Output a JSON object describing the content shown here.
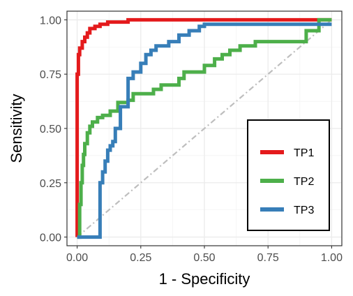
{
  "chart_data": {
    "type": "line",
    "title": "",
    "xlabel": "1 - Specificity",
    "ylabel": "Sensitivity",
    "xlim": [
      -0.04,
      1.04
    ],
    "ylim": [
      -0.04,
      1.04
    ],
    "x_ticks": [
      "0.00",
      "0.25",
      "0.50",
      "0.75",
      "1.00"
    ],
    "y_ticks": [
      "0.00",
      "0.25",
      "0.50",
      "0.75",
      "1.00"
    ],
    "grid": true,
    "legend_position": "bottom-right",
    "reference_line": {
      "x": [
        0,
        1
      ],
      "y": [
        0,
        1
      ],
      "color": "#bebebe",
      "style": "dash-dot"
    },
    "series": [
      {
        "name": "TP1",
        "color": "#e41a1c",
        "x": [
          0,
          0,
          0.005,
          0.005,
          0.01,
          0.01,
          0.02,
          0.02,
          0.03,
          0.03,
          0.04,
          0.04,
          0.05,
          0.05,
          0.07,
          0.07,
          0.09,
          0.09,
          0.12,
          0.12,
          0.2,
          0.2,
          0.35,
          0.35,
          0.58,
          0.58,
          1
        ],
        "y": [
          0,
          0.75,
          0.75,
          0.84,
          0.84,
          0.87,
          0.87,
          0.9,
          0.9,
          0.92,
          0.92,
          0.94,
          0.94,
          0.96,
          0.96,
          0.97,
          0.97,
          0.98,
          0.98,
          0.99,
          0.99,
          1.0,
          1.0,
          1.0,
          1.0,
          1.0,
          1.0
        ]
      },
      {
        "name": "TP2",
        "color": "#4daf4a",
        "x": [
          0,
          0.01,
          0.01,
          0.015,
          0.015,
          0.02,
          0.02,
          0.025,
          0.025,
          0.03,
          0.03,
          0.04,
          0.04,
          0.05,
          0.05,
          0.06,
          0.06,
          0.08,
          0.08,
          0.1,
          0.1,
          0.13,
          0.13,
          0.16,
          0.16,
          0.2,
          0.2,
          0.22,
          0.22,
          0.3,
          0.3,
          0.33,
          0.33,
          0.4,
          0.4,
          0.42,
          0.42,
          0.5,
          0.5,
          0.54,
          0.54,
          0.57,
          0.57,
          0.6,
          0.6,
          0.64,
          0.64,
          0.7,
          0.7,
          0.9,
          0.9,
          0.95,
          0.95,
          1
        ],
        "y": [
          0,
          0,
          0.15,
          0.15,
          0.25,
          0.25,
          0.33,
          0.33,
          0.38,
          0.38,
          0.43,
          0.43,
          0.48,
          0.48,
          0.51,
          0.51,
          0.53,
          0.53,
          0.55,
          0.55,
          0.56,
          0.56,
          0.58,
          0.58,
          0.62,
          0.62,
          0.63,
          0.63,
          0.66,
          0.66,
          0.68,
          0.68,
          0.7,
          0.7,
          0.73,
          0.73,
          0.76,
          0.76,
          0.79,
          0.79,
          0.82,
          0.82,
          0.84,
          0.84,
          0.86,
          0.86,
          0.88,
          0.88,
          0.9,
          0.9,
          0.95,
          0.95,
          1.0,
          1.0
        ]
      },
      {
        "name": "TP3",
        "color": "#377eb8",
        "x": [
          0,
          0.09,
          0.09,
          0.1,
          0.1,
          0.11,
          0.11,
          0.12,
          0.12,
          0.13,
          0.13,
          0.14,
          0.14,
          0.15,
          0.15,
          0.17,
          0.17,
          0.2,
          0.2,
          0.22,
          0.22,
          0.25,
          0.25,
          0.27,
          0.27,
          0.29,
          0.29,
          0.31,
          0.31,
          0.36,
          0.36,
          0.4,
          0.4,
          0.44,
          0.44,
          0.48,
          0.48,
          0.5,
          0.5,
          1
        ],
        "y": [
          0,
          0,
          0.25,
          0.25,
          0.3,
          0.3,
          0.35,
          0.35,
          0.4,
          0.4,
          0.42,
          0.42,
          0.44,
          0.44,
          0.5,
          0.5,
          0.6,
          0.6,
          0.73,
          0.73,
          0.76,
          0.76,
          0.8,
          0.8,
          0.84,
          0.84,
          0.86,
          0.86,
          0.88,
          0.88,
          0.9,
          0.9,
          0.93,
          0.93,
          0.95,
          0.95,
          0.97,
          0.97,
          0.98,
          0.98
        ]
      }
    ]
  }
}
